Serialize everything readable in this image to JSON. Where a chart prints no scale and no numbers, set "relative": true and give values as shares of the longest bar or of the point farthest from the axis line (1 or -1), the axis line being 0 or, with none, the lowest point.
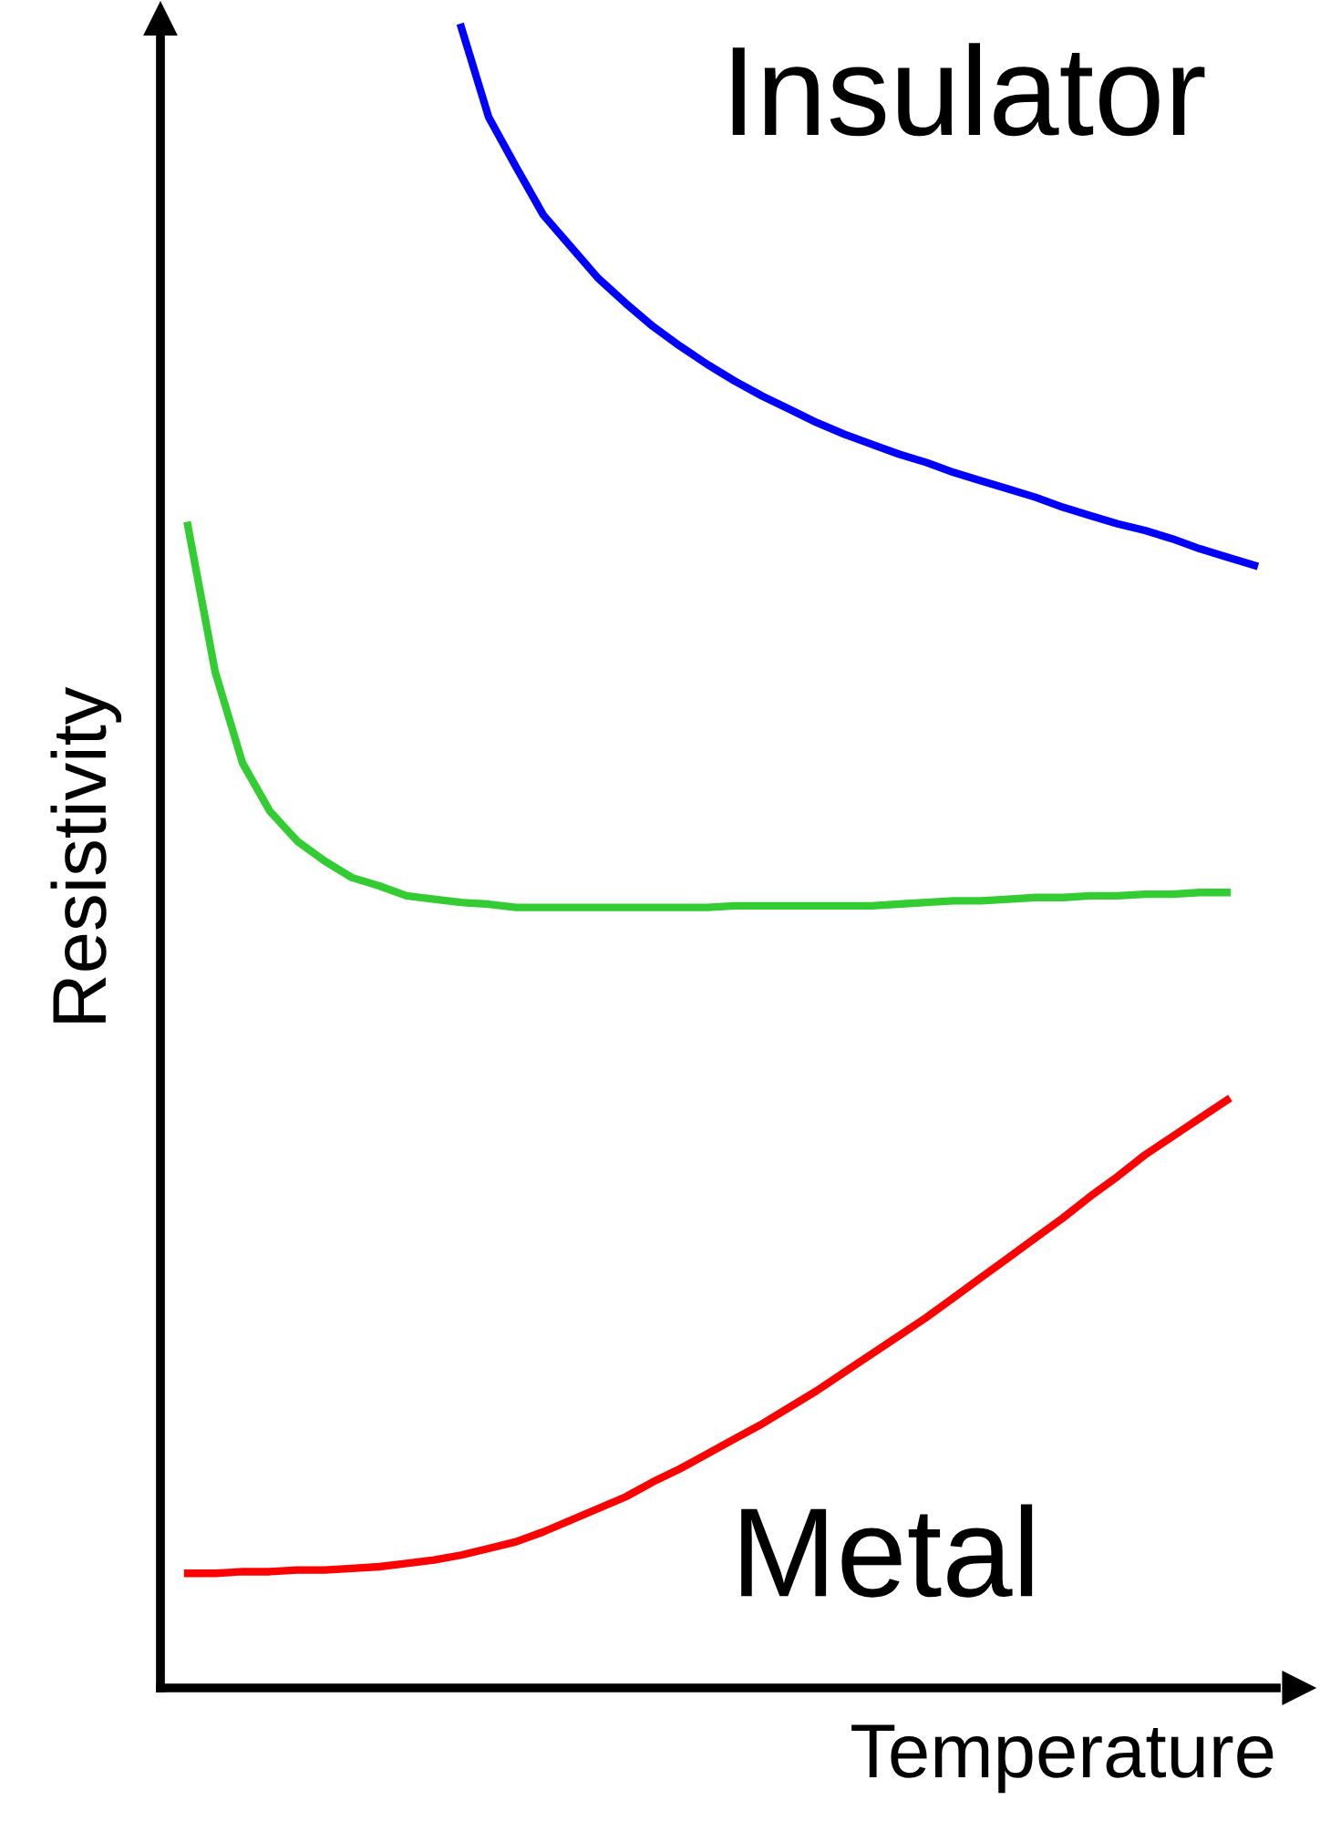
{
  "chart_data": {
    "type": "line",
    "relative": true,
    "xlabel": "Temperature",
    "ylabel": "Resistivity",
    "marker": "none",
    "line_style": "solid",
    "categories": [
      null,
      null,
      null,
      null,
      null,
      null,
      null,
      null,
      null,
      null,
      null,
      null,
      null,
      null,
      null,
      null,
      null,
      null,
      null,
      null,
      null,
      null,
      null,
      null,
      null,
      null,
      null,
      null,
      null,
      null,
      null,
      null,
      null,
      null,
      null,
      null,
      null,
      null,
      null,
      null,
      null
    ],
    "series": [
      {
        "name": "Insulator",
        "color": "#0000ff",
        "values": [
          null,
          null,
          null,
          null,
          null,
          null,
          null,
          null,
          null,
          null,
          null,
          1.0,
          0.946,
          0.916,
          0.887,
          0.868,
          0.849,
          0.834,
          0.82,
          0.808,
          0.797,
          0.787,
          0.778,
          0.77,
          0.762,
          0.755,
          0.749,
          0.743,
          0.738,
          0.732,
          0.727,
          0.722,
          0.717,
          0.711,
          0.706,
          0.701,
          0.697,
          0.692,
          0.686,
          0.681,
          0.676
        ]
      },
      {
        "color": "#33cc33",
        "values": [
          null,
          0.7,
          0.612,
          0.557,
          0.528,
          0.51,
          0.498,
          0.488,
          0.483,
          0.477,
          0.475,
          0.473,
          0.472,
          0.47,
          0.47,
          0.47,
          0.47,
          0.47,
          0.47,
          0.47,
          0.47,
          0.471,
          0.471,
          0.471,
          0.471,
          0.471,
          0.471,
          0.472,
          0.473,
          0.474,
          0.474,
          0.475,
          0.476,
          0.476,
          0.477,
          0.477,
          0.478,
          0.478,
          0.479,
          0.479,
          null
        ]
      },
      {
        "name": "Metal",
        "color": "#ff0000",
        "values": [
          null,
          0.069,
          0.069,
          0.07,
          0.07,
          0.071,
          0.071,
          0.072,
          0.073,
          0.075,
          0.077,
          0.08,
          0.084,
          0.088,
          0.094,
          0.101,
          0.108,
          0.115,
          0.124,
          0.132,
          0.141,
          0.15,
          0.159,
          0.169,
          0.179,
          0.19,
          0.201,
          0.212,
          0.223,
          0.235,
          0.247,
          0.259,
          0.271,
          0.283,
          0.296,
          0.308,
          0.321,
          0.332,
          0.343,
          0.354,
          null
        ]
      }
    ]
  }
}
